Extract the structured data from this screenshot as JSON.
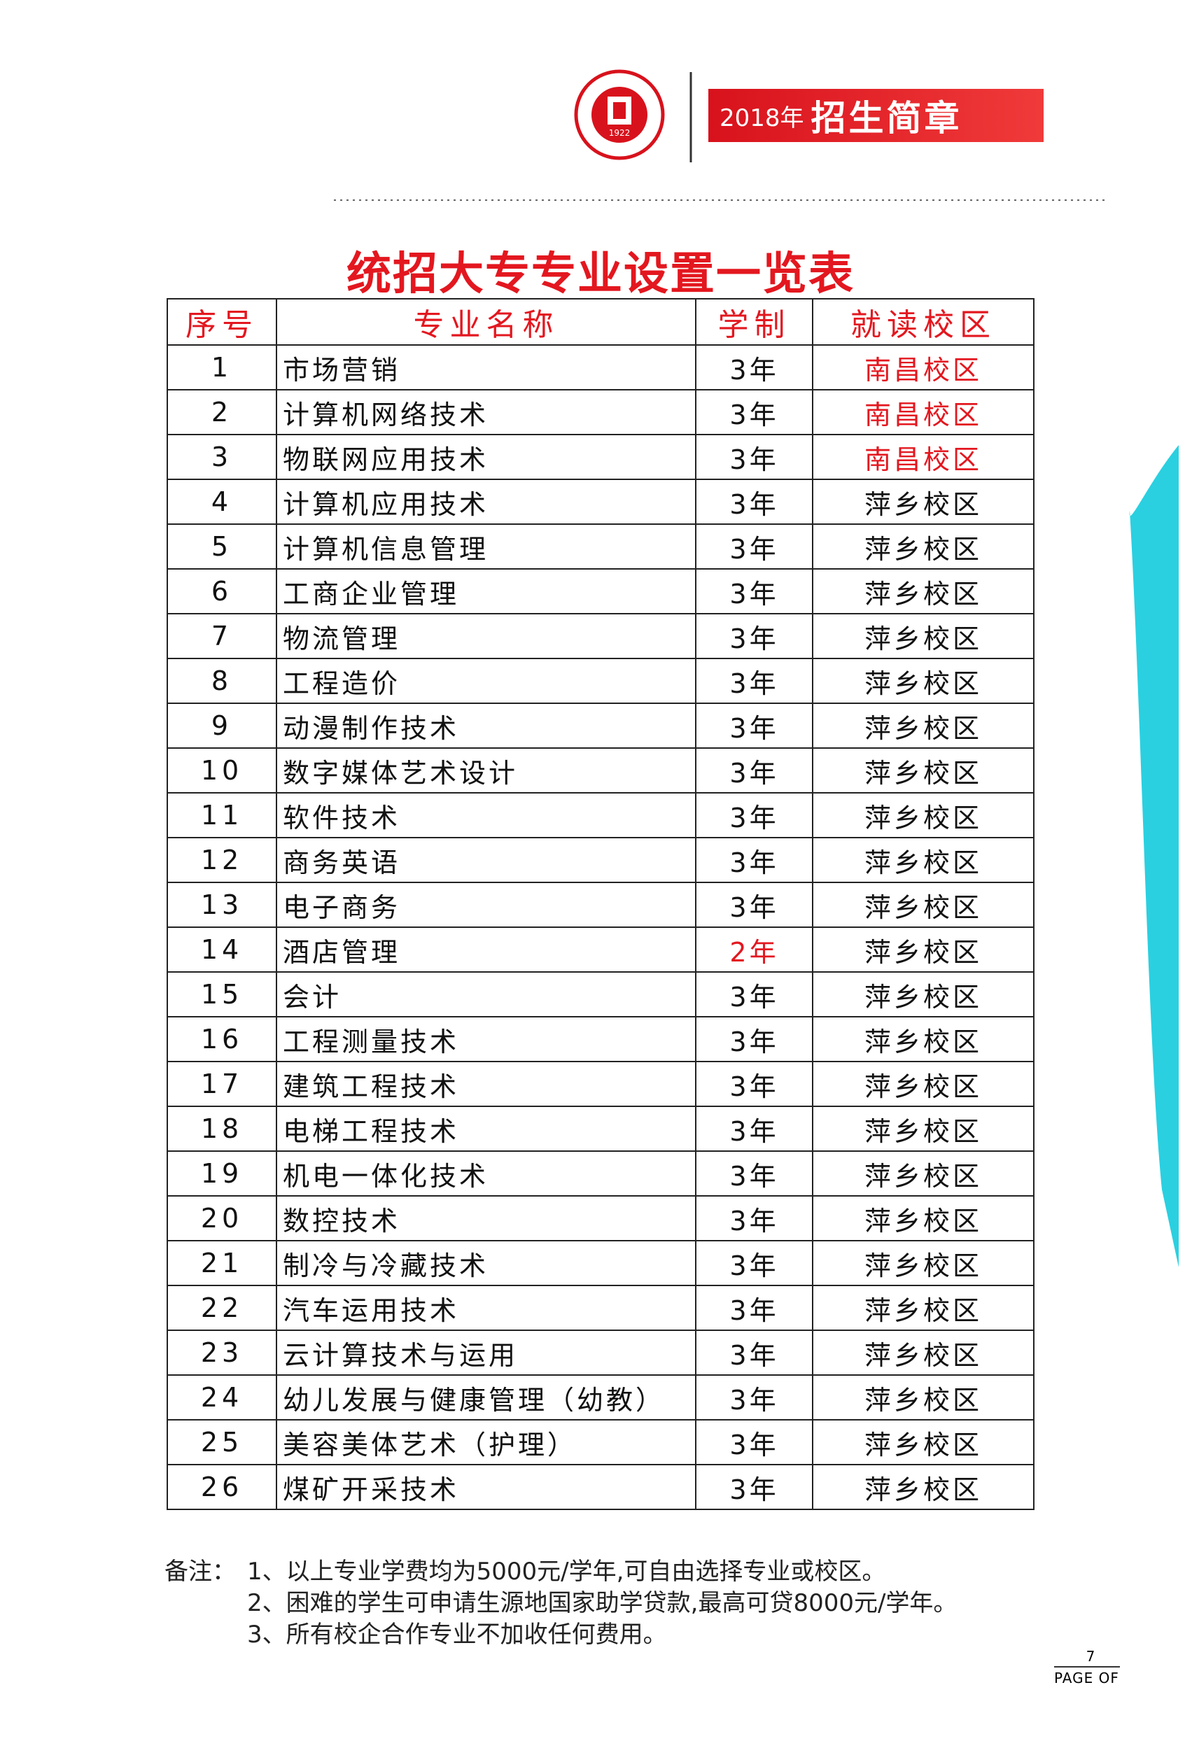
{
  "header": {
    "logo_year": "1922",
    "year": "2018年",
    "title": "招生简章"
  },
  "title": "统招大专专业设置一览表",
  "table": {
    "columns": [
      "序号",
      "专业名称",
      "学制",
      "就读校区"
    ],
    "rows": [
      [
        "1",
        "市场营销",
        "3年",
        "南昌校区"
      ],
      [
        "2",
        "计算机网络技术",
        "3年",
        "南昌校区"
      ],
      [
        "3",
        "物联网应用技术",
        "3年",
        "南昌校区"
      ],
      [
        "4",
        "计算机应用技术",
        "3年",
        "萍乡校区"
      ],
      [
        "5",
        "计算机信息管理",
        "3年",
        "萍乡校区"
      ],
      [
        "6",
        "工商企业管理",
        "3年",
        "萍乡校区"
      ],
      [
        "7",
        "物流管理",
        "3年",
        "萍乡校区"
      ],
      [
        "8",
        "工程造价",
        "3年",
        "萍乡校区"
      ],
      [
        "9",
        "动漫制作技术",
        "3年",
        "萍乡校区"
      ],
      [
        "10",
        "数字媒体艺术设计",
        "3年",
        "萍乡校区"
      ],
      [
        "11",
        "软件技术",
        "3年",
        "萍乡校区"
      ],
      [
        "12",
        "商务英语",
        "3年",
        "萍乡校区"
      ],
      [
        "13",
        "电子商务",
        "3年",
        "萍乡校区"
      ],
      [
        "14",
        "酒店管理",
        "2年",
        "萍乡校区"
      ],
      [
        "15",
        "会计",
        "3年",
        "萍乡校区"
      ],
      [
        "16",
        "工程测量技术",
        "3年",
        "萍乡校区"
      ],
      [
        "17",
        "建筑工程技术",
        "3年",
        "萍乡校区"
      ],
      [
        "18",
        "电梯工程技术",
        "3年",
        "萍乡校区"
      ],
      [
        "19",
        "机电一体化技术",
        "3年",
        "萍乡校区"
      ],
      [
        "20",
        "数控技术",
        "3年",
        "萍乡校区"
      ],
      [
        "21",
        "制冷与冷藏技术",
        "3年",
        "萍乡校区"
      ],
      [
        "22",
        "汽车运用技术",
        "3年",
        "萍乡校区"
      ],
      [
        "23",
        "云计算技术与运用",
        "3年",
        "萍乡校区"
      ],
      [
        "24",
        "幼儿发展与健康管理（幼教）",
        "3年",
        "萍乡校区"
      ],
      [
        "25",
        "美容美体艺术（护理）",
        "3年",
        "萍乡校区"
      ],
      [
        "26",
        "煤矿开采技术",
        "3年",
        "萍乡校区"
      ]
    ]
  },
  "notes": {
    "label": "备注：",
    "items": [
      "1、以上专业学费均为5000元/学年,可自由选择专业或校区。",
      "2、困难的学生可申请生源地国家助学贷款,最高可贷8000元/学年。",
      "3、所有校企合作专业不加收任何费用。"
    ]
  },
  "footer": {
    "page": "7",
    "label": "PAGE OF"
  }
}
